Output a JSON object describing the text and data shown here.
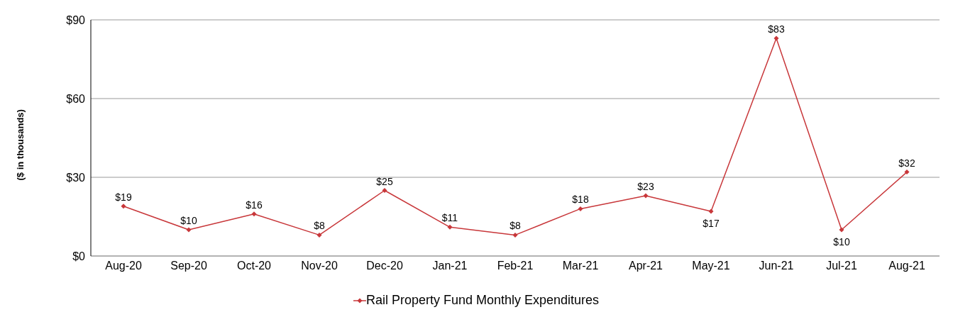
{
  "chart_data": {
    "type": "line",
    "ylabel": "($ in thousands)",
    "categories": [
      "Aug-20",
      "Sep-20",
      "Oct-20",
      "Nov-20",
      "Dec-20",
      "Jan-21",
      "Feb-21",
      "Mar-21",
      "Apr-21",
      "May-21",
      "Jun-21",
      "Jul-21",
      "Aug-21"
    ],
    "series": [
      {
        "name": "Rail Property Fund Monthly Expenditures",
        "color": "#c8373a",
        "values": [
          19,
          10,
          16,
          8,
          25,
          11,
          8,
          18,
          23,
          17,
          83,
          10,
          32
        ]
      }
    ],
    "value_labels": [
      "$19",
      "$10",
      "$16",
      "$8",
      "$25",
      "$11",
      "$8",
      "$18",
      "$23",
      "$17",
      "$83",
      "$10",
      "$32"
    ],
    "ylim": [
      0,
      90
    ],
    "yticks": [
      {
        "value": 0,
        "label": "$0"
      },
      {
        "value": 30,
        "label": "$30"
      },
      {
        "value": 60,
        "label": "$60"
      },
      {
        "value": 90,
        "label": "$90"
      }
    ],
    "grid": "y",
    "legend": "bottom",
    "marker": "diamond",
    "line_style": "solid"
  }
}
